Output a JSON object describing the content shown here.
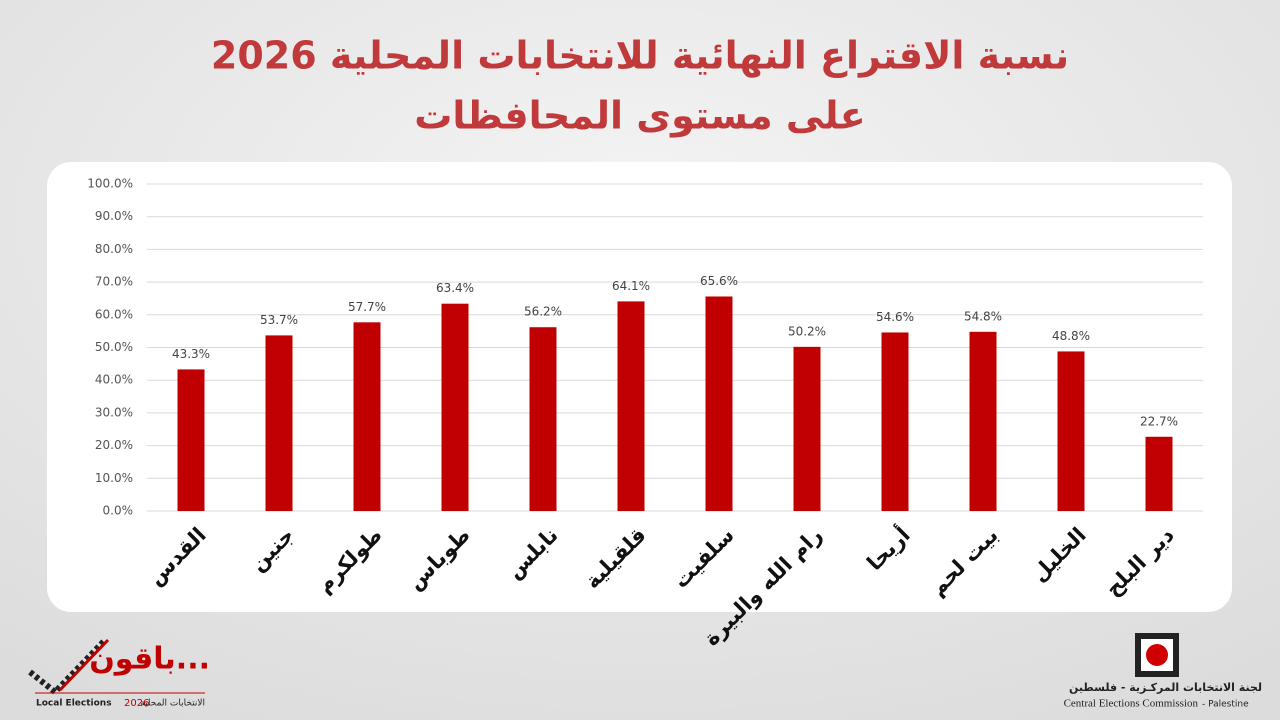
{
  "chart_data": {
    "type": "bar",
    "title": "نسبة الاقتراع النهائية للانتخابات المحلية 2026",
    "subtitle": "على مستوى المحافظات",
    "categories": [
      "القدس",
      "جنين",
      "طولكرم",
      "طوباس",
      "نابلس",
      "قلقيلية",
      "سلفيت",
      "رام الله والبيرة",
      "أريحا",
      "بيت لحم",
      "الخليل",
      "دير البلح"
    ],
    "values": [
      43.3,
      53.7,
      57.7,
      63.4,
      56.2,
      64.1,
      65.6,
      50.2,
      54.6,
      54.8,
      48.8,
      22.7
    ],
    "value_labels": [
      "43.3%",
      "53.7%",
      "57.7%",
      "63.4%",
      "56.2%",
      "64.1%",
      "65.6%",
      "50.2%",
      "54.6%",
      "54.8%",
      "48.8%",
      "22.7%"
    ],
    "color": "#c00000",
    "ylim": [
      0,
      100
    ],
    "yticks": [
      {
        "value": 0,
        "label": "0.0%"
      },
      {
        "value": 10,
        "label": "10.0%"
      },
      {
        "value": 20,
        "label": "20.0%"
      },
      {
        "value": 30,
        "label": "30.0%"
      },
      {
        "value": 40,
        "label": "40.0%"
      },
      {
        "value": 50,
        "label": "50.0%"
      },
      {
        "value": 60,
        "label": "60.0%"
      },
      {
        "value": 70,
        "label": "70.0%"
      },
      {
        "value": 80,
        "label": "80.0%"
      },
      {
        "value": 90,
        "label": "90.0%"
      },
      {
        "value": 100,
        "label": "100.0%"
      }
    ],
    "grid": true
  },
  "footer": {
    "campaign": "باقون...",
    "campaign_en": "Local Elections",
    "campaign_year": "2026",
    "campaign_ar": "الانتخابات المحلية",
    "commission_ar": "لجنة الانتخابات المركـزية - فلسطين",
    "commission_en": "Central Elections Commission",
    "commission_en_country": "- Palestine"
  }
}
